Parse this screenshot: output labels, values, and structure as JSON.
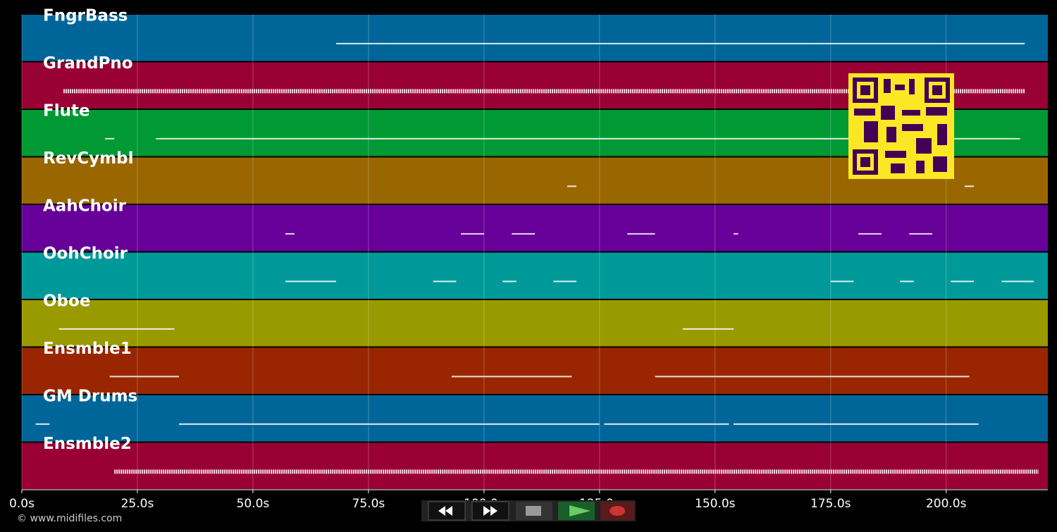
{
  "chart_data": {
    "type": "piano-roll",
    "xlim": [
      0,
      222
    ],
    "xticks": [
      {
        "value": 0,
        "label": "0.0s"
      },
      {
        "value": 25,
        "label": "25.0s"
      },
      {
        "value": 50,
        "label": "50.0s"
      },
      {
        "value": 75,
        "label": "75.0s"
      },
      {
        "value": 100,
        "label": "100.0s"
      },
      {
        "value": 125,
        "label": "125.0s"
      },
      {
        "value": 150,
        "label": "150.0s"
      },
      {
        "value": 175,
        "label": "175.0s"
      },
      {
        "value": 200,
        "label": "200.0s"
      }
    ],
    "grid": true,
    "tracks": [
      {
        "name": "FngrBass",
        "color": "#006699",
        "segments": [
          [
            68,
            217
          ]
        ]
      },
      {
        "name": "GrandPno",
        "color": "#990033",
        "segments": [
          [
            9,
            217
          ]
        ]
      },
      {
        "name": "Flute",
        "color": "#009933",
        "segments": [
          [
            18,
            20
          ],
          [
            29,
            216
          ]
        ]
      },
      {
        "name": "RevCymbl",
        "color": "#996600",
        "segments": [
          [
            118,
            120
          ],
          [
            204,
            206
          ]
        ]
      },
      {
        "name": "AahChoir",
        "color": "#660099",
        "segments": [
          [
            57,
            59
          ],
          [
            95,
            100
          ],
          [
            106,
            111
          ],
          [
            131,
            137
          ],
          [
            154,
            155
          ],
          [
            181,
            186
          ],
          [
            192,
            197
          ]
        ]
      },
      {
        "name": "OohChoir",
        "color": "#009999",
        "segments": [
          [
            57,
            68
          ],
          [
            89,
            94
          ],
          [
            104,
            107
          ],
          [
            115,
            120
          ],
          [
            175,
            180
          ],
          [
            190,
            193
          ],
          [
            201,
            206
          ],
          [
            212,
            219
          ]
        ]
      },
      {
        "name": "Oboe",
        "color": "#999900",
        "segments": [
          [
            8,
            33
          ],
          [
            143,
            154
          ]
        ]
      },
      {
        "name": "Ensmble1",
        "color": "#992600",
        "segments": [
          [
            19,
            34
          ],
          [
            93,
            119
          ],
          [
            137,
            205
          ]
        ]
      },
      {
        "name": "GM Drums",
        "color": "#006699",
        "segments": [
          [
            3,
            6
          ],
          [
            34,
            125
          ],
          [
            126,
            153
          ],
          [
            154,
            207
          ]
        ]
      },
      {
        "name": "Ensmble2",
        "color": "#990033",
        "segments": [
          [
            20,
            220
          ]
        ]
      }
    ]
  },
  "footer": {
    "copyright": "© www.midifiles.com"
  }
}
